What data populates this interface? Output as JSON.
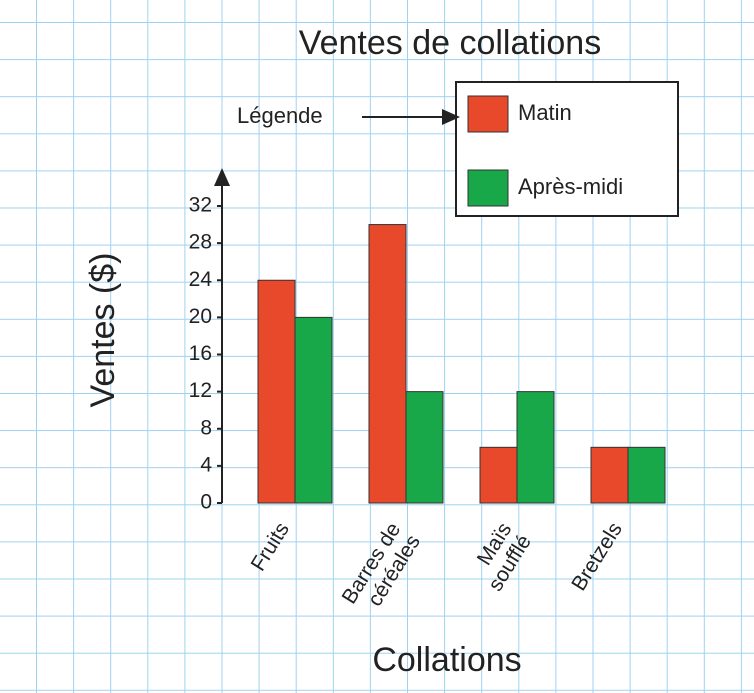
{
  "chart_data": {
    "type": "bar",
    "title": "Ventes de collations",
    "y_label": "Ventes ($)",
    "x_label": "Collations",
    "legend_caption": "Légende",
    "categories": [
      "Fruits",
      "Barres de\ncéréales",
      "Maïs\nsoufflé",
      "Bretzels"
    ],
    "series": [
      {
        "name": "Matin",
        "color": "#e8492a",
        "values": [
          24,
          30,
          6,
          6
        ]
      },
      {
        "name": "Après-midi",
        "color": "#18a84a",
        "values": [
          20,
          12,
          12,
          6
        ]
      }
    ],
    "ylim": [
      0,
      32
    ],
    "yticks": [
      0,
      4,
      8,
      12,
      16,
      20,
      24,
      28,
      32
    ]
  }
}
